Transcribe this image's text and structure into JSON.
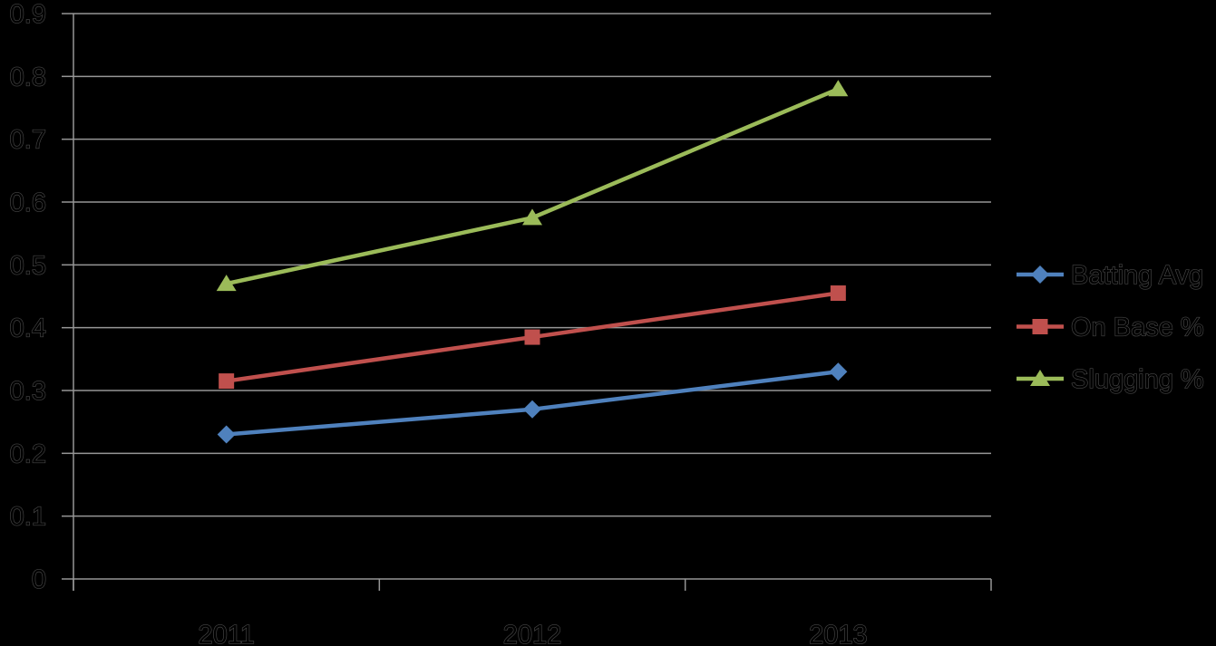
{
  "chart_data": {
    "type": "line",
    "title": "",
    "xlabel": "",
    "ylabel": "",
    "categories": [
      "2011",
      "2012",
      "2013"
    ],
    "series": [
      {
        "name": "Batting Avg",
        "marker": "diamond",
        "color": "#4F81BD",
        "values": [
          0.23,
          0.27,
          0.33
        ]
      },
      {
        "name": "On Base %",
        "marker": "square",
        "color": "#C0504D",
        "values": [
          0.315,
          0.385,
          0.455
        ]
      },
      {
        "name": "Slugging %",
        "marker": "triangle",
        "color": "#9BBB59",
        "values": [
          0.47,
          0.575,
          0.78
        ]
      }
    ],
    "ylim": [
      0,
      0.9
    ],
    "ytick_step": 0.1,
    "ytick_labels": [
      "0",
      "0.1",
      "0.2",
      "0.3",
      "0.4",
      "0.5",
      "0.6",
      "0.7",
      "0.8",
      "0.9"
    ],
    "grid": true,
    "legend_position": "right"
  },
  "colors": {
    "background": "#000000",
    "gridline": "#969696",
    "axis": "#969696",
    "text_fill": "#000000",
    "text_halo": "#474747"
  }
}
